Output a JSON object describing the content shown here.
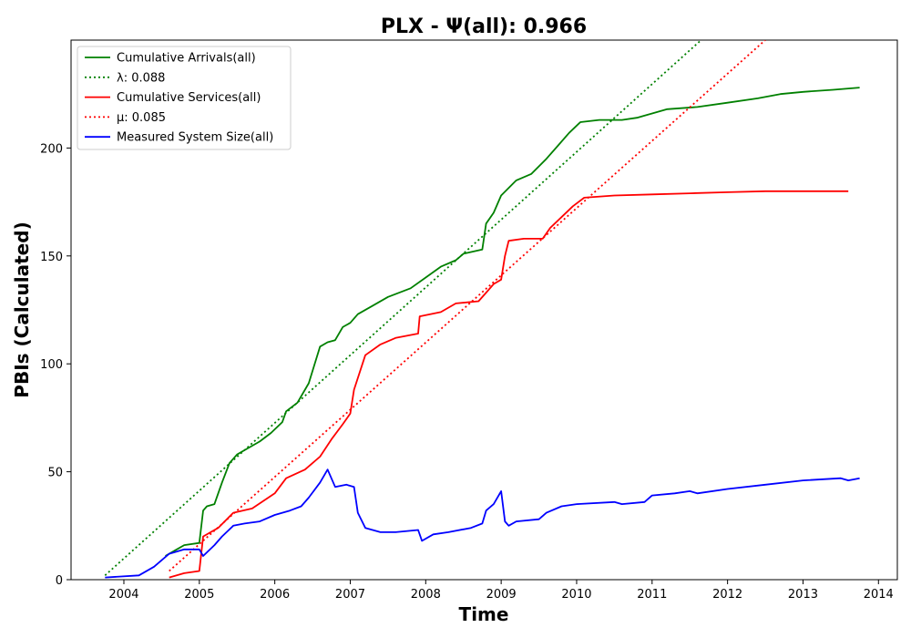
{
  "chart_data": {
    "type": "line",
    "title": "PLX -  Ψ(all): 0.966",
    "xlabel": "Time",
    "ylabel": "PBIs (Calculated)",
    "xlim": [
      2003.3,
      2014.25
    ],
    "ylim": [
      0,
      250
    ],
    "xticks": [
      2004,
      2005,
      2006,
      2007,
      2008,
      2009,
      2010,
      2011,
      2012,
      2013,
      2014
    ],
    "yticks": [
      0,
      50,
      100,
      150,
      200
    ],
    "grid": false,
    "legend_position": "upper-left",
    "series": [
      {
        "name": "Cumulative Arrivals(all)",
        "color": "#008000",
        "style": "solid",
        "x": [
          2004.55,
          2004.7,
          2004.8,
          2005.0,
          2005.05,
          2005.1,
          2005.2,
          2005.3,
          2005.4,
          2005.5,
          2005.6,
          2005.8,
          2005.95,
          2006.1,
          2006.15,
          2006.3,
          2006.45,
          2006.6,
          2006.7,
          2006.8,
          2006.9,
          2007.0,
          2007.1,
          2007.3,
          2007.5,
          2007.8,
          2008.0,
          2008.2,
          2008.4,
          2008.5,
          2008.75,
          2008.8,
          2008.9,
          2009.0,
          2009.2,
          2009.4,
          2009.6,
          2009.75,
          2009.9,
          2010.05,
          2010.3,
          2010.6,
          2010.8,
          2011.0,
          2011.2,
          2011.6,
          2012.0,
          2012.4,
          2012.7,
          2013.0,
          2013.4,
          2013.75
        ],
        "y": [
          11,
          14,
          16,
          17,
          32,
          34,
          35,
          45,
          54,
          58,
          60,
          64,
          68,
          73,
          78,
          82,
          91,
          108,
          110,
          111,
          117,
          119,
          123,
          127,
          131,
          135,
          140,
          145,
          148,
          151,
          153,
          165,
          170,
          178,
          185,
          188,
          195,
          201,
          207,
          212,
          213,
          213,
          214,
          216,
          218,
          219,
          221,
          223,
          225,
          226,
          227,
          228
        ]
      },
      {
        "name": "λ: 0.088",
        "color": "#008000",
        "style": "dotted",
        "x": [
          2003.75,
          2011.65
        ],
        "y": [
          2,
          250
        ]
      },
      {
        "name": "Cumulative Services(all)",
        "color": "#ff0000",
        "style": "solid",
        "x": [
          2004.6,
          2004.8,
          2005.0,
          2005.05,
          2005.25,
          2005.45,
          2005.7,
          2006.0,
          2006.15,
          2006.4,
          2006.6,
          2006.75,
          2006.9,
          2007.0,
          2007.05,
          2007.2,
          2007.4,
          2007.6,
          2007.9,
          2007.92,
          2008.2,
          2008.4,
          2008.7,
          2008.8,
          2008.9,
          2009.0,
          2009.05,
          2009.1,
          2009.3,
          2009.55,
          2009.65,
          2009.8,
          2009.95,
          2010.1,
          2010.5,
          2011.0,
          2011.5,
          2012.0,
          2012.5,
          2013.0,
          2013.6
        ],
        "y": [
          1,
          3,
          4,
          20,
          24,
          31,
          33,
          40,
          47,
          51,
          57,
          65,
          72,
          77,
          88,
          104,
          109,
          112,
          114,
          122,
          124,
          128,
          129,
          133,
          137,
          139,
          150,
          157,
          158,
          158,
          163,
          168,
          173,
          177,
          178,
          178.5,
          179,
          179.5,
          180,
          180,
          180
        ]
      },
      {
        "name": "μ: 0.085",
        "color": "#ff0000",
        "style": "dotted",
        "x": [
          2004.6,
          2012.5
        ],
        "y": [
          4,
          250
        ]
      },
      {
        "name": "Measured System Size(all)",
        "color": "#0000ff",
        "style": "solid",
        "x": [
          2003.75,
          2004.2,
          2004.4,
          2004.6,
          2004.8,
          2005.0,
          2005.05,
          2005.2,
          2005.3,
          2005.45,
          2005.6,
          2005.8,
          2006.0,
          2006.2,
          2006.35,
          2006.45,
          2006.6,
          2006.7,
          2006.8,
          2006.95,
          2007.05,
          2007.1,
          2007.2,
          2007.4,
          2007.6,
          2007.9,
          2007.95,
          2008.1,
          2008.3,
          2008.6,
          2008.75,
          2008.8,
          2008.9,
          2009.0,
          2009.05,
          2009.1,
          2009.2,
          2009.5,
          2009.6,
          2009.8,
          2010.0,
          2010.5,
          2010.6,
          2010.9,
          2011.0,
          2011.3,
          2011.5,
          2011.6,
          2012.0,
          2012.5,
          2013.0,
          2013.5,
          2013.6,
          2013.75
        ],
        "y": [
          1,
          2,
          6,
          12,
          14,
          14,
          11,
          16,
          20,
          25,
          26,
          27,
          30,
          32,
          34,
          38,
          45,
          51,
          43,
          44,
          43,
          31,
          24,
          22,
          22,
          23,
          18,
          21,
          22,
          24,
          26,
          32,
          35,
          41,
          27,
          25,
          27,
          28,
          31,
          34,
          35,
          36,
          35,
          36,
          39,
          40,
          41,
          40,
          42,
          44,
          46,
          47,
          46,
          47
        ]
      }
    ]
  }
}
